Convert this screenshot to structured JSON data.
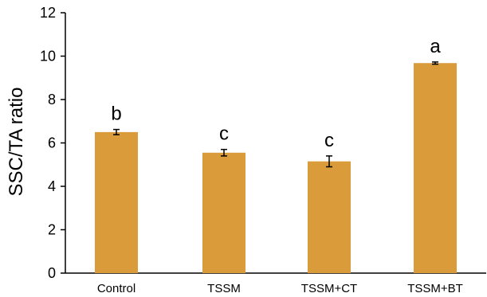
{
  "chart_data": {
    "type": "bar",
    "categories": [
      "Control",
      "TSSM",
      "TSSM+CT",
      "TSSM+BT"
    ],
    "values": [
      6.5,
      5.55,
      5.15,
      9.68
    ],
    "errors": [
      0.12,
      0.15,
      0.25,
      0.05
    ],
    "significance_letters": [
      "b",
      "c",
      "c",
      "a"
    ],
    "ylabel": "SSC/TA ratio",
    "ylim": [
      0,
      12
    ],
    "yticks": [
      0,
      2,
      4,
      6,
      8,
      10,
      12
    ],
    "bar_color": "#DA9B3A",
    "grid": false
  }
}
